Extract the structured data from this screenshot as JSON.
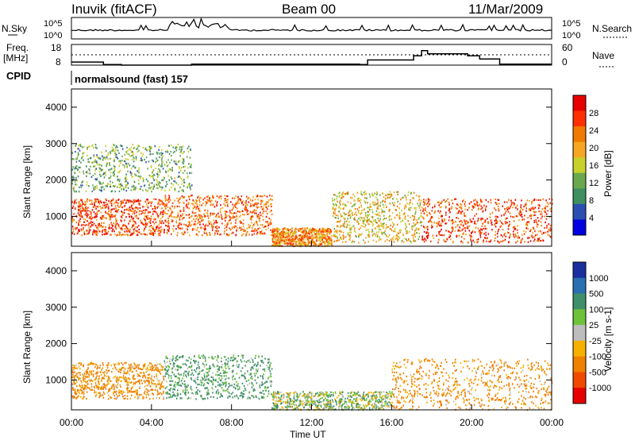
{
  "header": {
    "station": "Inuvik (fitACF)",
    "beam": "Beam 00",
    "date": "11/Mar/2009"
  },
  "top_panel": {
    "left_label": "N.Sky",
    "right_label": "N.Search",
    "left_ticks": [
      "10^5",
      "10^0"
    ],
    "right_ticks": [
      "10^5",
      "10^0"
    ]
  },
  "freq_panel": {
    "left_label_1": "Freq.",
    "left_label_2": "[MHz]",
    "right_label": "Nave",
    "left_ticks": [
      "18",
      "8"
    ],
    "right_ticks": [
      "60",
      "0"
    ],
    "freq_levels_hours": [
      [
        0,
        9.5
      ],
      [
        1.6,
        8.3
      ],
      [
        2.5,
        8.0
      ],
      [
        6,
        8.5
      ],
      [
        10.5,
        8.5
      ],
      [
        14.4,
        8.3
      ],
      [
        14.8,
        10.5
      ],
      [
        17.1,
        12.5
      ],
      [
        17.5,
        15.0
      ],
      [
        17.8,
        13.5
      ],
      [
        19.8,
        12.5
      ],
      [
        20.4,
        11.0
      ],
      [
        21.4,
        8.5
      ],
      [
        24,
        8.5
      ]
    ]
  },
  "cpid": {
    "label": "CPID",
    "mode": "normalsound (fast) 157"
  },
  "x_axis": {
    "label": "Time UT",
    "ticks": [
      "00:00",
      "04:00",
      "08:00",
      "12:00",
      "16:00",
      "20:00",
      "00:00"
    ]
  },
  "power_panel": {
    "ylabel": "Slant Range [km]",
    "y_ticks": [
      "1000",
      "2000",
      "3000",
      "4000"
    ],
    "colorbar_label": "Power [dB]",
    "colorbar_ticks": [
      "28",
      "24",
      "20",
      "16",
      "12",
      "8",
      "4"
    ]
  },
  "velocity_panel": {
    "ylabel": "Slant Range [km]",
    "y_ticks": [
      "1000",
      "2000",
      "3000",
      "4000"
    ],
    "colorbar_label": "Velocity [m s-1]",
    "colorbar_ticks": [
      "1000",
      "500",
      "100",
      "25",
      "-25",
      "-100",
      "-500",
      "-1000"
    ]
  },
  "colors": {
    "power_scale": [
      "#0000e0",
      "#2a4fb0",
      "#3f8f60",
      "#6aa84f",
      "#c8d02a",
      "#f5a623",
      "#f07a00",
      "#ff3000",
      "#e60000"
    ],
    "velocity_scale": [
      "#1a2ea0",
      "#2a6fb0",
      "#3f8f6a",
      "#6dc23a",
      "#bdbdbd",
      "#f5b000",
      "#f08000",
      "#f04a00",
      "#e60000"
    ]
  },
  "chart_data": [
    {
      "type": "heatmap",
      "title": "Power",
      "x_range_hours": [
        0,
        24
      ],
      "ylim": [
        180,
        4500
      ],
      "echo_regions": [
        {
          "t": [
            0,
            4.6
          ],
          "range": [
            500,
            1500
          ],
          "power_db": 26
        },
        {
          "t": [
            0,
            6
          ],
          "range": [
            1700,
            3000
          ],
          "power_db": 12
        },
        {
          "t": [
            4.6,
            10
          ],
          "range": [
            500,
            1600
          ],
          "power_db": 24
        },
        {
          "t": [
            10,
            13
          ],
          "range": [
            200,
            700
          ],
          "power_db": 22
        },
        {
          "t": [
            13,
            17.5
          ],
          "range": [
            300,
            1700
          ],
          "power_db": 18
        },
        {
          "t": [
            17.5,
            24
          ],
          "range": [
            300,
            1500
          ],
          "power_db": 26
        }
      ]
    },
    {
      "type": "heatmap",
      "title": "Velocity",
      "x_range_hours": [
        0,
        24
      ],
      "ylim": [
        180,
        4500
      ],
      "echo_regions": [
        {
          "t": [
            0,
            4.6
          ],
          "range": [
            500,
            1500
          ],
          "velocity": -150
        },
        {
          "t": [
            4.6,
            10
          ],
          "range": [
            500,
            1700
          ],
          "velocity": 150
        },
        {
          "t": [
            10,
            16
          ],
          "range": [
            200,
            700
          ],
          "velocity": 50
        },
        {
          "t": [
            16,
            24
          ],
          "range": [
            200,
            1600
          ],
          "velocity": -150
        }
      ]
    }
  ]
}
